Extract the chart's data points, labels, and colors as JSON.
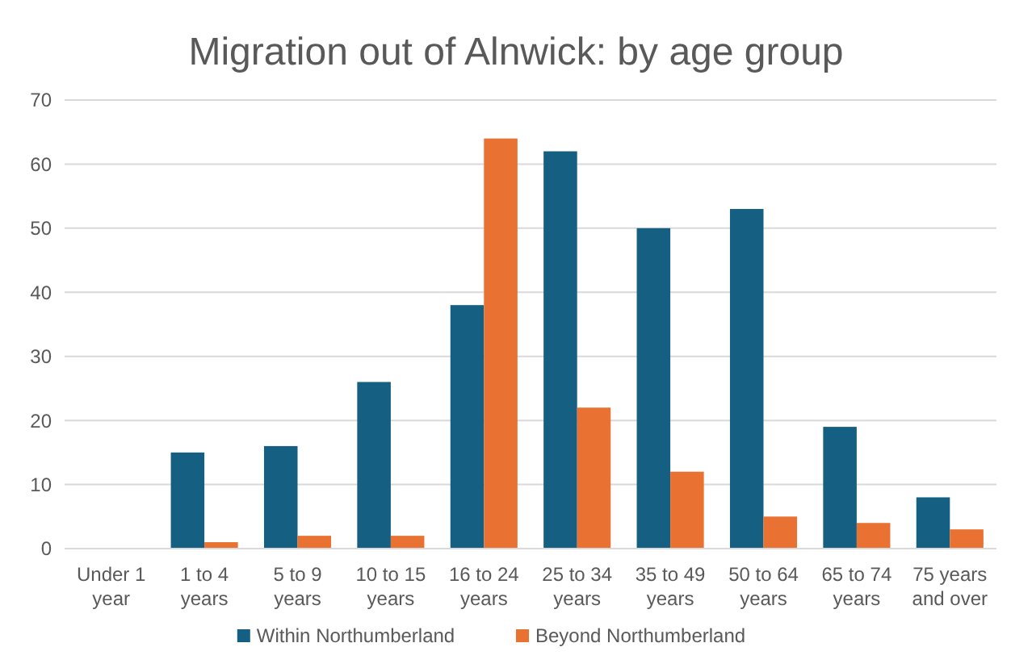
{
  "chart_data": {
    "type": "bar",
    "title": "Migration out of Alnwick: by age group",
    "categories": [
      "Under 1 year",
      "1 to 4 years",
      "5 to 9 years",
      "10 to 15 years",
      "16 to 24 years",
      "25 to 34 years",
      "35 to 49 years",
      "50 to 64 years",
      "65 to 74 years",
      "75 years and over"
    ],
    "series": [
      {
        "name": "Within Northumberland",
        "color": "#156082",
        "values": [
          0,
          15,
          16,
          26,
          38,
          62,
          50,
          53,
          19,
          8
        ]
      },
      {
        "name": "Beyond Northumberland",
        "color": "#e97132",
        "values": [
          0,
          1,
          2,
          2,
          64,
          22,
          12,
          5,
          4,
          3
        ]
      }
    ],
    "ylim": [
      0,
      70
    ],
    "yticks": [
      0,
      10,
      20,
      30,
      40,
      50,
      60,
      70
    ],
    "grid": "y",
    "legend": "bottom"
  }
}
